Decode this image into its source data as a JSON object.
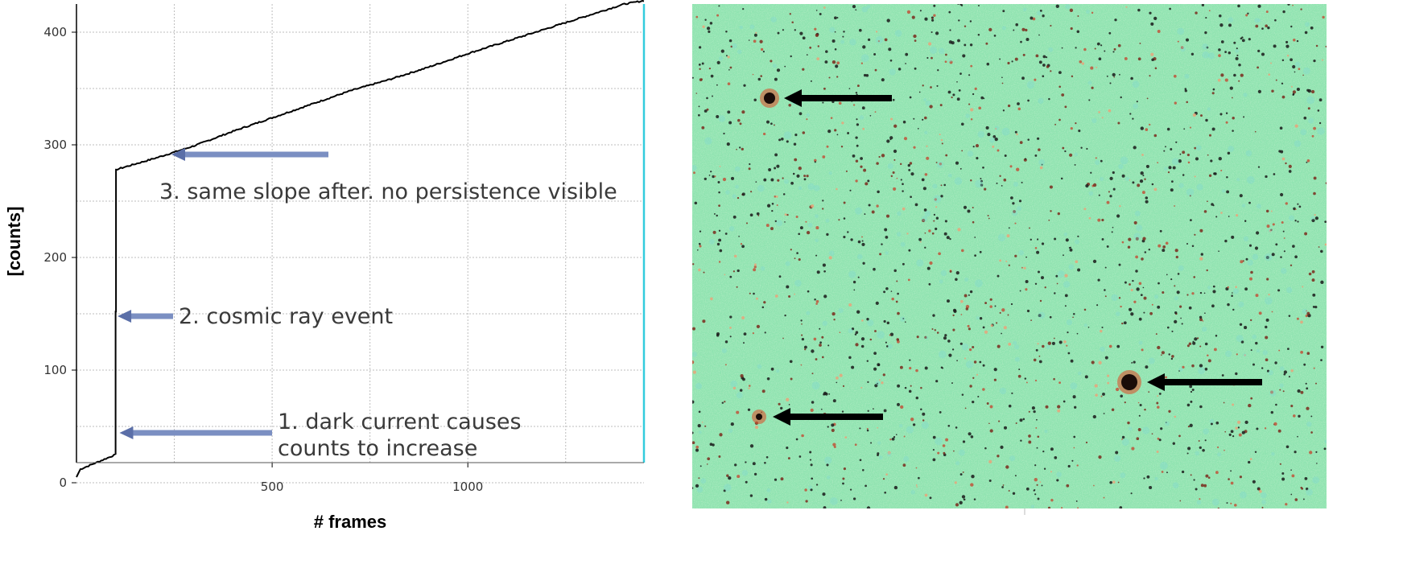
{
  "chart_data": {
    "type": "line",
    "title": "",
    "xlabel": "# frames",
    "ylabel": "[counts]",
    "xlim": [
      0,
      1450
    ],
    "ylim": [
      0,
      425
    ],
    "x_ticks": [
      500,
      1000
    ],
    "y_ticks": [
      0,
      100,
      200,
      300,
      400
    ],
    "grid": true,
    "legend": "none",
    "series": [
      {
        "color": "#000000",
        "x": [
          0,
          10,
          100,
          100,
          101,
          101,
          200,
          300,
          400,
          500,
          600,
          700,
          800,
          900,
          1000,
          1100,
          1200,
          1300,
          1400,
          1450
        ],
        "y": [
          5,
          12,
          25,
          152,
          152,
          278,
          288,
          299,
          312,
          324,
          336,
          348,
          358,
          369,
          381,
          392,
          403,
          414,
          425,
          428
        ]
      }
    ],
    "vline": {
      "x": 1450,
      "color": "#33ccdd"
    },
    "annotations": [
      {
        "lines": [
          "1. dark current causes",
          "counts to increase"
        ],
        "arrow_to": [
          110,
          23
        ]
      },
      {
        "lines": [
          "2. cosmic ray event"
        ],
        "arrow_to": [
          105,
          135
        ]
      },
      {
        "lines": [
          "3. same slope after. no persistence visible"
        ],
        "arrow_to": [
          260,
          287
        ]
      }
    ]
  },
  "image_panel": {
    "colormap": [
      "#8fe6b4",
      "#5fd3a0",
      "#b8e19a",
      "#e2b080",
      "#c1422c",
      "#2a1410"
    ],
    "arrow_color": "#000000",
    "markers": 4
  }
}
